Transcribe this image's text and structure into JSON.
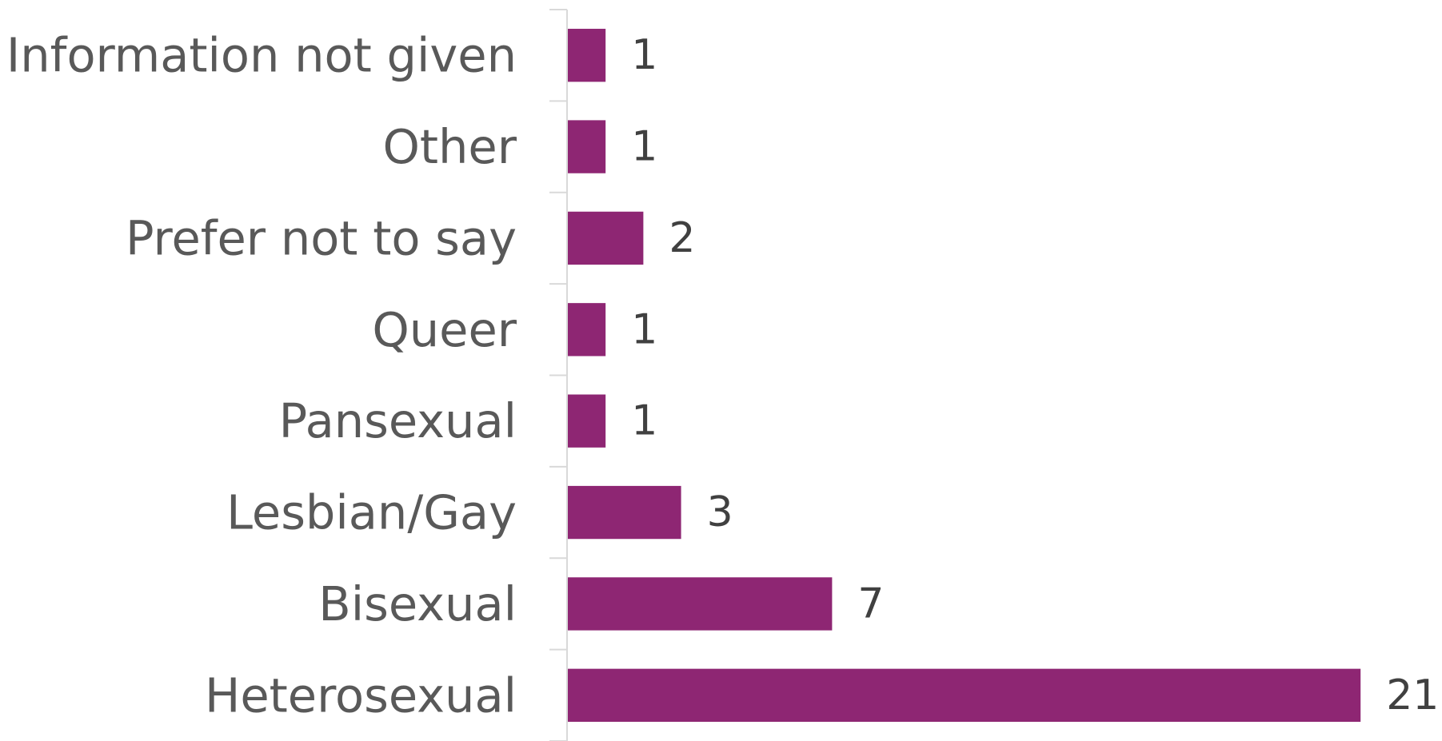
{
  "chart_data": {
    "type": "bar",
    "orientation": "horizontal",
    "categories": [
      "Information not given",
      "Other",
      "Prefer not to say",
      "Queer",
      "Pansexual",
      "Lesbian/Gay",
      "Bisexual",
      "Heterosexual"
    ],
    "values": [
      1,
      1,
      2,
      1,
      1,
      3,
      7,
      21
    ],
    "color": "#8e2673",
    "data_labels": true
  }
}
